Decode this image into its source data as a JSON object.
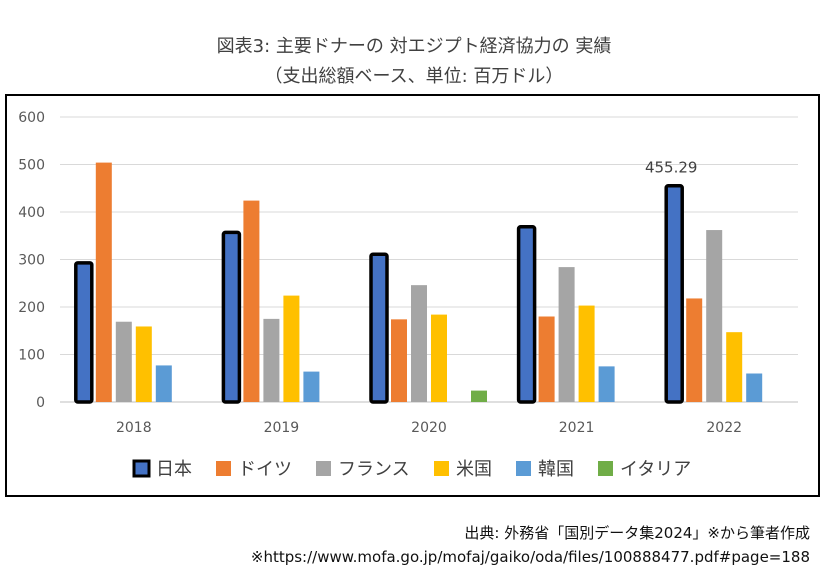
{
  "title_line1": "図表3: 主要ドナーの 対エジプト経済協力の 実績",
  "title_line2": "（支出総額ベース、単位: 百万ドル）",
  "source_line1": "出典: 外務省「国別データ集2024」※から筆者作成",
  "source_line2": "※https://www.mofa.go.jp/mofaj/gaiko/oda/files/100888477.pdf#page=188",
  "chart_data": {
    "type": "bar",
    "categories": [
      "2018",
      "2019",
      "2020",
      "2021",
      "2022"
    ],
    "ylim": [
      0,
      600
    ],
    "yticks": [
      0,
      100,
      200,
      300,
      400,
      500,
      600
    ],
    "grid": true,
    "legend_position": "bottom",
    "series": [
      {
        "name": "日本",
        "color": "#4472C4",
        "outline": true,
        "values": [
          293,
          357,
          311,
          369,
          455.29
        ]
      },
      {
        "name": "ドイツ",
        "color": "#ED7D31",
        "values": [
          504,
          424,
          174,
          180,
          218
        ]
      },
      {
        "name": "フランス",
        "color": "#A5A5A5",
        "values": [
          169,
          175,
          246,
          284,
          362
        ]
      },
      {
        "name": "米国",
        "color": "#FFC000",
        "values": [
          159,
          224,
          184,
          203,
          147
        ]
      },
      {
        "name": "韓国",
        "color": "#5B9BD5",
        "values": [
          77,
          64,
          null,
          75,
          60
        ]
      },
      {
        "name": "イタリア",
        "color": "#70AD47",
        "values": [
          null,
          null,
          24,
          null,
          null
        ]
      }
    ],
    "annotations": [
      {
        "series": "日本",
        "category": "2022",
        "text": "455.29"
      }
    ]
  }
}
